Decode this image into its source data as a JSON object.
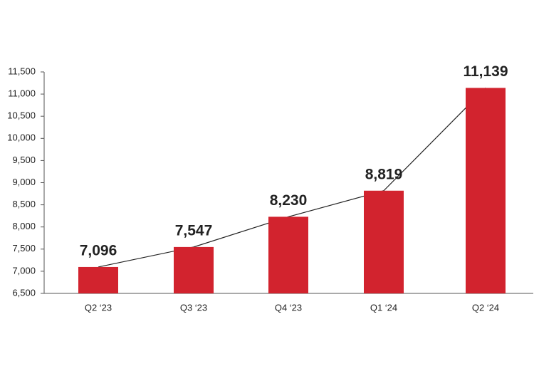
{
  "chart_data": {
    "type": "bar",
    "categories": [
      "Q2 ‘23",
      "Q3 ‘23",
      "Q4 ‘23",
      "Q1 ‘24",
      "Q2 ‘24"
    ],
    "values": [
      7096,
      7547,
      8230,
      8819,
      11139
    ],
    "value_labels": [
      "7,096",
      "7,547",
      "8,230",
      "8,819",
      "11,139"
    ],
    "color": "#d2232e",
    "line_color": "#222222",
    "ylim": [
      6500,
      11500
    ],
    "yticks": [
      {
        "value": 6500,
        "label": "6,500"
      },
      {
        "value": 7000,
        "label": "7,000"
      },
      {
        "value": 7500,
        "label": "7,500"
      },
      {
        "value": 8000,
        "label": "8,000"
      },
      {
        "value": 8500,
        "label": "8,500"
      },
      {
        "value": 9000,
        "label": "9,000"
      },
      {
        "value": 9500,
        "label": "9,500"
      },
      {
        "value": 10000,
        "label": "10,000"
      },
      {
        "value": 10500,
        "label": "10,500"
      },
      {
        "value": 11000,
        "label": "11,000"
      },
      {
        "value": 11500,
        "label": "11,500"
      }
    ],
    "grid": false
  }
}
